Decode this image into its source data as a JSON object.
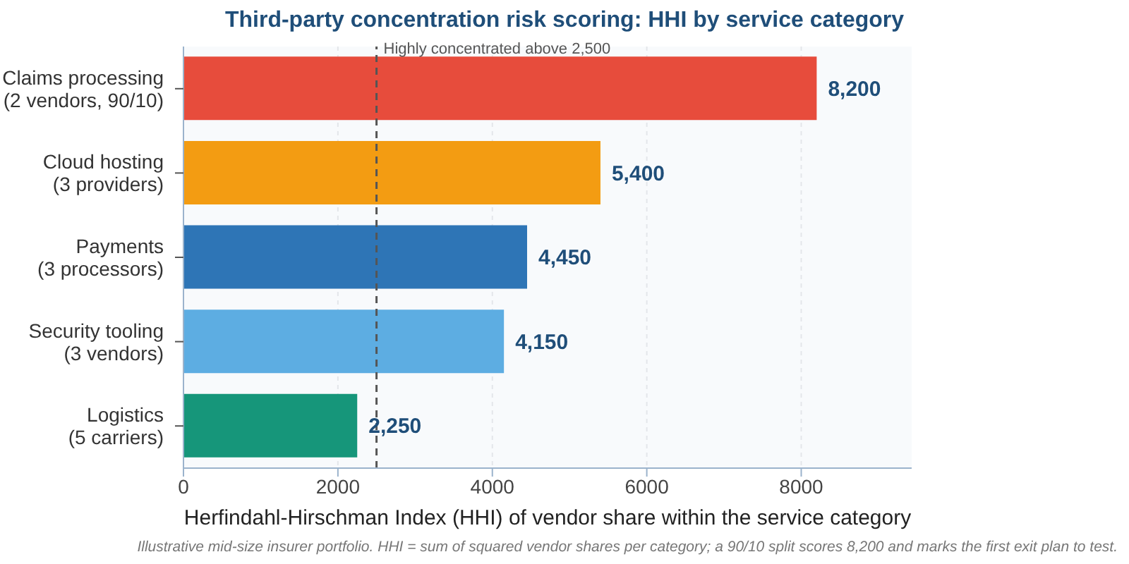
{
  "chart_data": {
    "type": "bar",
    "orientation": "horizontal",
    "title": "Third-party concentration risk scoring: HHI by service category",
    "xlabel": "Herfindahl-Hirschman Index (HHI) of vendor share within the service category",
    "categories": [
      "Claims processing\n(2 vendors, 90/10)",
      "Cloud hosting\n(3 providers)",
      "Payments\n(3 processors)",
      "Security tooling\n(3 vendors)",
      "Logistics\n(5 carriers)"
    ],
    "values": [
      8200,
      5400,
      4450,
      4150,
      2250
    ],
    "colors": [
      "#e74c3c",
      "#f39c12",
      "#2e75b6",
      "#5dade2",
      "#16967a"
    ],
    "value_labels": [
      "8,200",
      "5,400",
      "4,450",
      "4,150",
      "2,250"
    ],
    "xlim": [
      0,
      9430
    ],
    "xticks": [
      0,
      2000,
      4000,
      6000,
      8000
    ],
    "grid": "x",
    "ref_lines": [
      {
        "axis": "x",
        "value": 2500,
        "label": "Highly concentrated above 2,500",
        "color": "#555555",
        "line_style": "dashed"
      }
    ],
    "annotations": [
      "Illustrative mid-size insurer portfolio. HHI = sum of squared vendor shares per category; a 90/10 split scores 8,200 and marks the first exit plan to test."
    ]
  }
}
